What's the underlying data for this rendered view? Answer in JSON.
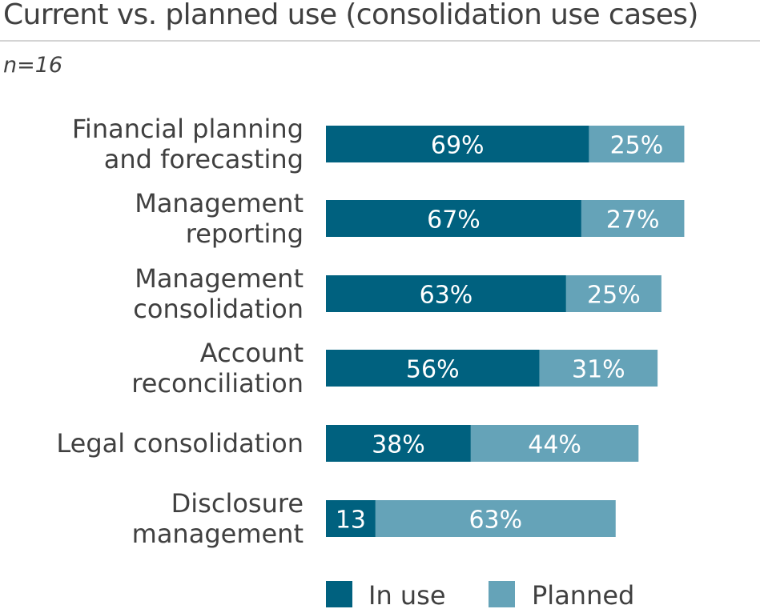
{
  "chart_data": {
    "type": "bar",
    "orientation": "horizontal",
    "stacked": true,
    "title": "Current vs. planned use (consolidation use cases)",
    "subtitle": "n=16",
    "categories": [
      [
        "Financial planning",
        "and forecasting"
      ],
      [
        "Management",
        "reporting"
      ],
      [
        "Management",
        "consolidation"
      ],
      [
        "Account",
        "reconciliation"
      ],
      [
        "Legal consolidation"
      ],
      [
        "Disclosure",
        "management"
      ]
    ],
    "series": [
      {
        "name": "In use",
        "color": "#00617f",
        "values": [
          69,
          67,
          63,
          56,
          38,
          13
        ],
        "labels": [
          "69%",
          "67%",
          "63%",
          "56%",
          "38%",
          "13"
        ]
      },
      {
        "name": "Planned",
        "color": "#65a3b8",
        "values": [
          25,
          27,
          25,
          31,
          44,
          63
        ],
        "labels": [
          "25%",
          "27%",
          "25%",
          "31%",
          "44%",
          "63%"
        ]
      }
    ],
    "xlim": [
      0,
      100
    ],
    "grid": false,
    "legend": "bottom"
  }
}
